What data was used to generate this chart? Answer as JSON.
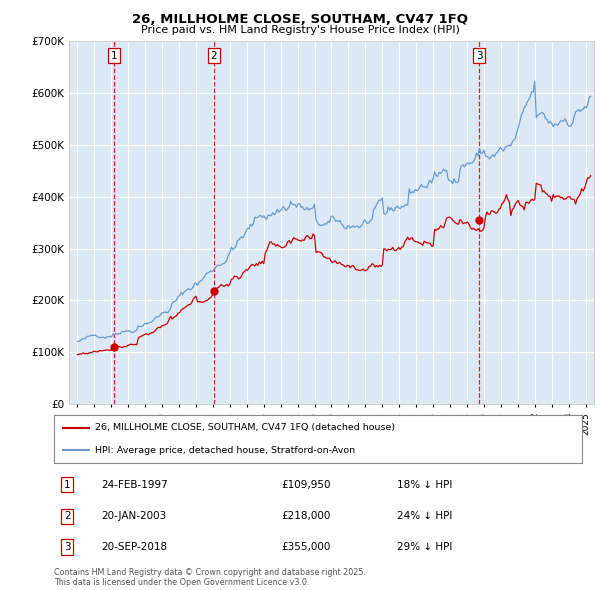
{
  "title": "26, MILLHOLME CLOSE, SOUTHAM, CV47 1FQ",
  "subtitle": "Price paid vs. HM Land Registry's House Price Index (HPI)",
  "legend_line1": "26, MILLHOLME CLOSE, SOUTHAM, CV47 1FQ (detached house)",
  "legend_line2": "HPI: Average price, detached house, Stratford-on-Avon",
  "footer": "Contains HM Land Registry data © Crown copyright and database right 2025.\nThis data is licensed under the Open Government Licence v3.0.",
  "sales": [
    {
      "num": 1,
      "date": "24-FEB-1997",
      "price": "£109,950",
      "pct": "18% ↓ HPI",
      "year": 1997.14,
      "price_val": 109950
    },
    {
      "num": 2,
      "date": "20-JAN-2003",
      "price": "£218,000",
      "pct": "24% ↓ HPI",
      "year": 2003.06,
      "price_val": 218000
    },
    {
      "num": 3,
      "date": "20-SEP-2018",
      "price": "£355,000",
      "pct": "29% ↓ HPI",
      "year": 2018.72,
      "price_val": 355000
    }
  ],
  "ylim": [
    0,
    700000
  ],
  "xlim_start": 1994.5,
  "xlim_end": 2025.5,
  "bg_color": "#dce9f5",
  "red_color": "#cc0000",
  "blue_color": "#6699cc",
  "grid_color": "#ffffff",
  "dashed_color": "#cc0000",
  "marker_color": "#cc0000"
}
